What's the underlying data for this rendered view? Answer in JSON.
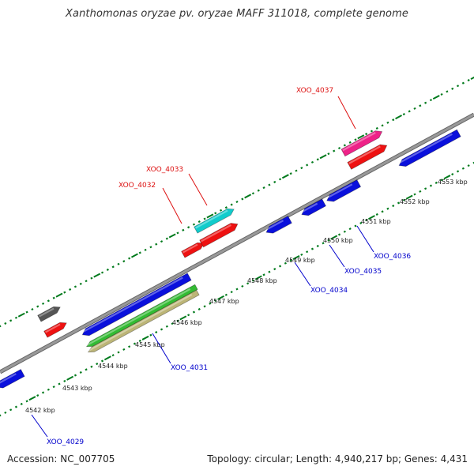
{
  "title": "Xanthomonas oryzae pv. oryzae MAFF 311018, complete genome",
  "footer": {
    "accession": "Accession: NC_007705",
    "summary": "Topology: circular; Length: 4,940,217 bp; Genes: 4,431"
  },
  "colors": {
    "backbone": "#999999",
    "tick": "#007a1c",
    "forward_label": "#dd1111",
    "reverse_label": "#0000cc",
    "blue": "#0a10dc",
    "red": "#ee1111",
    "pink": "#ee2288",
    "cyan": "#11cccc",
    "gray": "#555555",
    "green": "#33bb33",
    "khaki": "#bcb577"
  },
  "tick_labels": [
    "4542 kbp",
    "4543 kbp",
    "4544 kbp",
    "4545 kbp",
    "4546 kbp",
    "4547 kbp",
    "4548 kbp",
    "4549 kbp",
    "4550 kbp",
    "4551 kbp",
    "4552 kbp",
    "4553 kbp"
  ],
  "forward_genes": [
    {
      "label": "",
      "color": "gray"
    },
    {
      "label": "",
      "color": "red"
    },
    {
      "label": "XOO_4032",
      "color": "red"
    },
    {
      "label": "XOO_4033",
      "color": "cyan"
    },
    {
      "label": "",
      "color": "red"
    },
    {
      "label": "XOO_4037",
      "color": "pink"
    },
    {
      "label": "",
      "color": "red"
    }
  ],
  "reverse_genes": [
    {
      "label": "XOO_4029",
      "color": "blue"
    },
    {
      "label": "",
      "color": "blue"
    },
    {
      "label": "",
      "color": "green"
    },
    {
      "label": "XOO_4031",
      "color": "khaki"
    },
    {
      "label": "XOO_4034",
      "color": "blue"
    },
    {
      "label": "XOO_4035",
      "color": "blue"
    },
    {
      "label": "XOO_4036",
      "color": "blue"
    },
    {
      "label": "",
      "color": "blue"
    }
  ]
}
